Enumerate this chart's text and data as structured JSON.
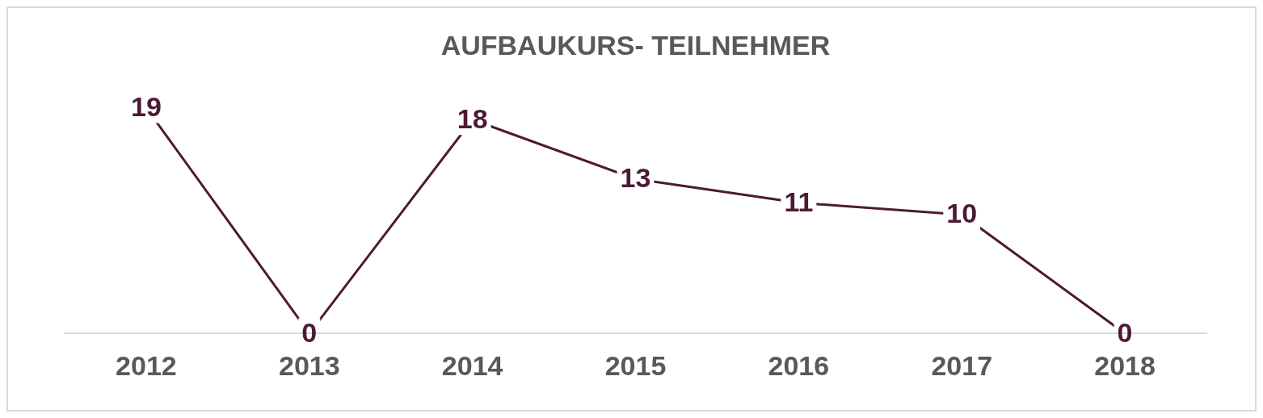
{
  "chart_data": {
    "type": "line",
    "title": "AUFBAUKURS- TEILNEHMER",
    "categories": [
      "2012",
      "2013",
      "2014",
      "2015",
      "2016",
      "2017",
      "2018"
    ],
    "series": [
      {
        "color": "#4d1a36",
        "values": [
          19,
          0,
          18,
          13,
          11,
          10,
          0
        ]
      }
    ],
    "data_labels": true,
    "grid": false,
    "legend": false,
    "line_style": "solid"
  }
}
